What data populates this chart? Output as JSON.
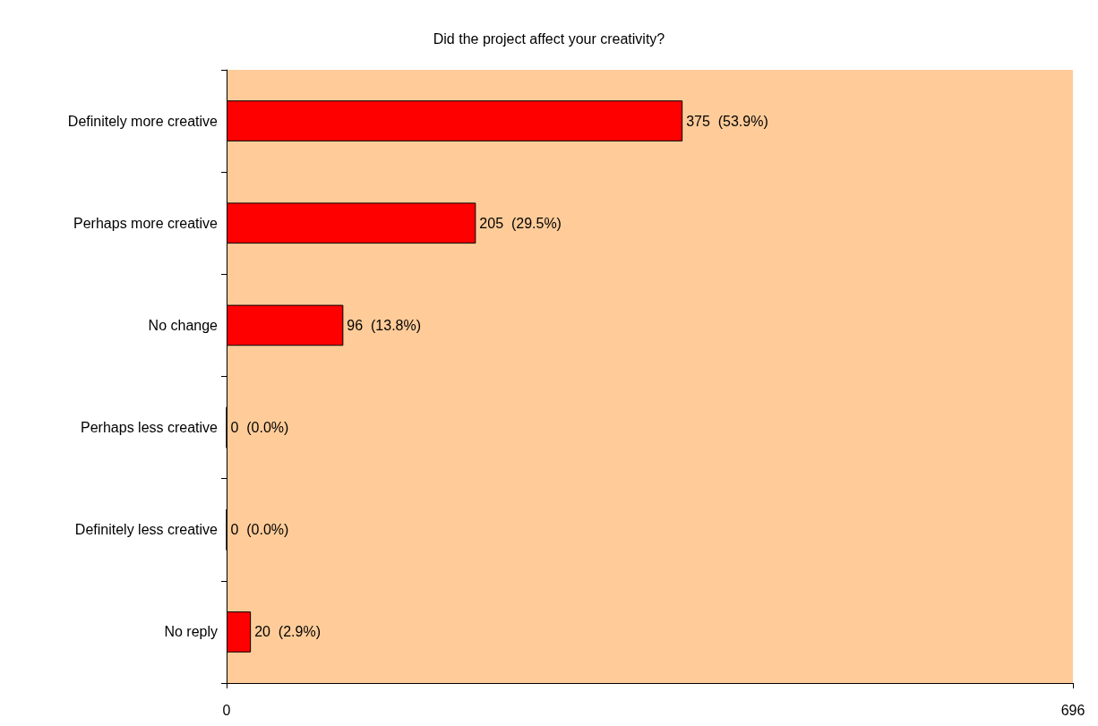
{
  "chart_data": {
    "type": "bar",
    "orientation": "horizontal",
    "title": "Did the project affect your creativity?",
    "categories": [
      "Definitely more creative",
      "Perhaps more creative",
      "No change",
      "Perhaps less creative",
      "Definitely less creative",
      "No reply"
    ],
    "values": [
      375,
      205,
      96,
      0,
      0,
      20
    ],
    "value_labels": [
      "375  (53.9%)",
      "205  (29.5%)",
      "96  (13.8%)",
      "0  (0.0%)",
      "0  (0.0%)",
      "20  (2.9%)"
    ],
    "color": "#ff0000",
    "xlim": [
      0,
      696
    ],
    "xticks": [
      0,
      696
    ]
  }
}
